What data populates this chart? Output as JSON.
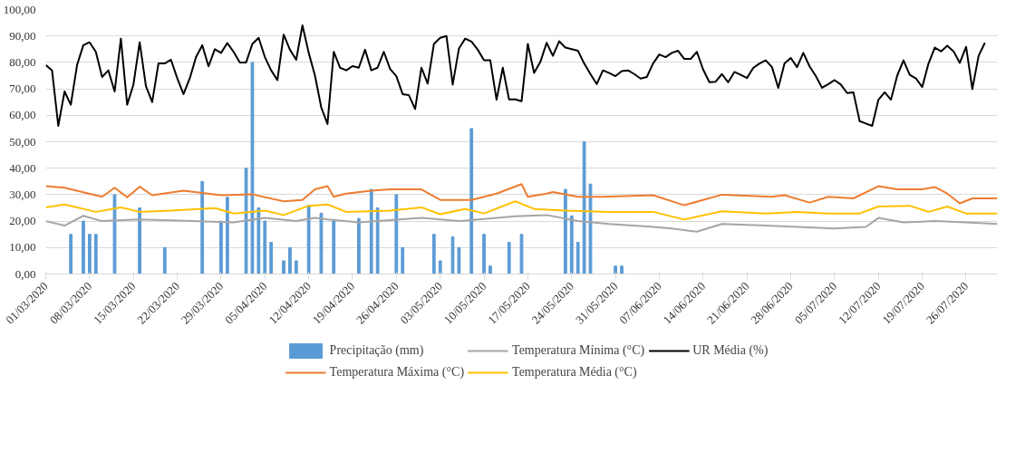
{
  "chart_data": {
    "type": "line",
    "ylim": [
      0,
      100
    ],
    "yticks": [
      {
        "value": 0,
        "label": "0,00"
      },
      {
        "value": 10,
        "label": "10,00"
      },
      {
        "value": 20,
        "label": "20,00"
      },
      {
        "value": 30,
        "label": "30,00"
      },
      {
        "value": 40,
        "label": "40,00"
      },
      {
        "value": 50,
        "label": "50,00"
      },
      {
        "value": 60,
        "label": "60,00"
      },
      {
        "value": 70,
        "label": "70,00"
      },
      {
        "value": 80,
        "label": "80,00"
      },
      {
        "value": 90,
        "label": "90,00"
      },
      {
        "value": 100,
        "label": "100,00"
      }
    ],
    "xlim": [
      "2020-03-01",
      "2020-07-31"
    ],
    "xticks": [
      {
        "value": "2020-03-01",
        "label": "01/03/2020"
      },
      {
        "value": "2020-03-08",
        "label": "08/03/2020"
      },
      {
        "value": "2020-03-15",
        "label": "15/03/2020"
      },
      {
        "value": "2020-03-22",
        "label": "22/03/2020"
      },
      {
        "value": "2020-03-29",
        "label": "29/03/2020"
      },
      {
        "value": "2020-04-05",
        "label": "05/04/2020"
      },
      {
        "value": "2020-04-12",
        "label": "12/04/2020"
      },
      {
        "value": "2020-04-19",
        "label": "19/04/2020"
      },
      {
        "value": "2020-04-26",
        "label": "26/04/2020"
      },
      {
        "value": "2020-05-03",
        "label": "03/05/2020"
      },
      {
        "value": "2020-05-10",
        "label": "10/05/2020"
      },
      {
        "value": "2020-05-17",
        "label": "17/05/2020"
      },
      {
        "value": "2020-05-24",
        "label": "24/05/2020"
      },
      {
        "value": "2020-05-31",
        "label": "31/05/2020"
      },
      {
        "value": "2020-06-07",
        "label": "07/06/2020"
      },
      {
        "value": "2020-06-14",
        "label": "14/06/2020"
      },
      {
        "value": "2020-06-21",
        "label": "21/06/2020"
      },
      {
        "value": "2020-06-28",
        "label": "28/06/2020"
      },
      {
        "value": "2020-07-05",
        "label": "05/07/2020"
      },
      {
        "value": "2020-07-12",
        "label": "12/07/2020"
      },
      {
        "value": "2020-07-19",
        "label": "19/07/2020"
      },
      {
        "value": "2020-07-26",
        "label": "26/07/2020"
      }
    ],
    "grid": "y",
    "legend": "bottom",
    "series": [
      {
        "name": "Precipitação (mm)",
        "type": "bar",
        "color": "#5b9bd5",
        "x": [
          "2020-03-05",
          "2020-03-07",
          "2020-03-08",
          "2020-03-09",
          "2020-03-12",
          "2020-03-16",
          "2020-03-20",
          "2020-03-26",
          "2020-03-29",
          "2020-03-30",
          "2020-04-02",
          "2020-04-03",
          "2020-04-04",
          "2020-04-05",
          "2020-04-06",
          "2020-04-08",
          "2020-04-09",
          "2020-04-10",
          "2020-04-12",
          "2020-04-14",
          "2020-04-16",
          "2020-04-20",
          "2020-04-22",
          "2020-04-23",
          "2020-04-26",
          "2020-04-27",
          "2020-05-02",
          "2020-05-03",
          "2020-05-05",
          "2020-05-06",
          "2020-05-08",
          "2020-05-10",
          "2020-05-11",
          "2020-05-14",
          "2020-05-16",
          "2020-05-23",
          "2020-05-24",
          "2020-05-25",
          "2020-05-26",
          "2020-05-27",
          "2020-05-31",
          "2020-06-01"
        ],
        "values": [
          15,
          20,
          15,
          15,
          30,
          25,
          10,
          35,
          20,
          29,
          40,
          80,
          25,
          20,
          12,
          5,
          10,
          5,
          26,
          23,
          20,
          21,
          32,
          25,
          30,
          10,
          15,
          5,
          14,
          10,
          55,
          15,
          3,
          12,
          15,
          32,
          22,
          12,
          50,
          34,
          3,
          3
        ]
      },
      {
        "name": "Temperatura Máxima (°C)",
        "color": "#ed7d31",
        "x": [
          "2020-03-01",
          "2020-03-04",
          "2020-03-10",
          "2020-03-12",
          "2020-03-14",
          "2020-03-16",
          "2020-03-18",
          "2020-03-23",
          "2020-03-29",
          "2020-04-03",
          "2020-04-08",
          "2020-04-11",
          "2020-04-13",
          "2020-04-15",
          "2020-04-16",
          "2020-04-18",
          "2020-04-22",
          "2020-04-25",
          "2020-04-30",
          "2020-05-03",
          "2020-05-08",
          "2020-05-12",
          "2020-05-16",
          "2020-05-17",
          "2020-05-20",
          "2020-05-21",
          "2020-05-25",
          "2020-05-29",
          "2020-06-06",
          "2020-06-11",
          "2020-06-14",
          "2020-06-17",
          "2020-06-25",
          "2020-06-27",
          "2020-07-01",
          "2020-07-04",
          "2020-07-08",
          "2020-07-12",
          "2020-07-15",
          "2020-07-19",
          "2020-07-21",
          "2020-07-23",
          "2020-07-25",
          "2020-07-27",
          "2020-07-31"
        ],
        "values": [
          33.2,
          32.6,
          29.2,
          32.6,
          29,
          33,
          29.8,
          31.5,
          29.8,
          30.1,
          27.5,
          28,
          32,
          33.2,
          29.2,
          30.4,
          31.5,
          32,
          32,
          28,
          28,
          30.4,
          34,
          29.2,
          30.4,
          31,
          29.2,
          29.2,
          29.8,
          26,
          28,
          30,
          29.2,
          29.8,
          27,
          29.2,
          28.6,
          33.2,
          32,
          32,
          32.9,
          30.4,
          26.7,
          28.6,
          28.6
        ]
      },
      {
        "name": "Temperatura Mínima (°C)",
        "color": "#a5a5a5",
        "x": [
          "2020-03-01",
          "2020-03-04",
          "2020-03-07",
          "2020-03-10",
          "2020-03-16",
          "2020-03-21",
          "2020-03-31",
          "2020-04-05",
          "2020-04-10",
          "2020-04-13",
          "2020-04-15",
          "2020-04-20",
          "2020-04-30",
          "2020-05-06",
          "2020-05-15",
          "2020-05-20",
          "2020-05-25",
          "2020-05-30",
          "2020-06-06",
          "2020-06-09",
          "2020-06-13",
          "2020-06-17",
          "2020-06-24",
          "2020-06-29",
          "2020-07-05",
          "2020-07-10",
          "2020-07-12",
          "2020-07-16",
          "2020-07-21",
          "2020-07-26",
          "2020-07-31"
        ],
        "values": [
          20,
          18.3,
          22,
          20,
          20.6,
          20.3,
          19.5,
          21.2,
          20,
          21.2,
          20.6,
          19.5,
          21.2,
          20,
          21.8,
          22.3,
          20,
          18.9,
          17.8,
          17.2,
          16,
          18.9,
          18.3,
          17.8,
          17.2,
          17.8,
          21.2,
          19.5,
          20,
          19.5,
          18.9
        ]
      },
      {
        "name": "Temperatura Média (°C)",
        "color": "#ffc000",
        "x": [
          "2020-03-01",
          "2020-03-04",
          "2020-03-09",
          "2020-03-13",
          "2020-03-16",
          "2020-03-21",
          "2020-03-28",
          "2020-03-31",
          "2020-04-05",
          "2020-04-08",
          "2020-04-12",
          "2020-04-15",
          "2020-04-18",
          "2020-04-25",
          "2020-04-30",
          "2020-05-03",
          "2020-05-07",
          "2020-05-10",
          "2020-05-15",
          "2020-05-18",
          "2020-05-23",
          "2020-05-30",
          "2020-06-06",
          "2020-06-11",
          "2020-06-17",
          "2020-06-24",
          "2020-06-29",
          "2020-07-04",
          "2020-07-09",
          "2020-07-12",
          "2020-07-17",
          "2020-07-20",
          "2020-07-23",
          "2020-07-26",
          "2020-07-31"
        ],
        "values": [
          25.2,
          26.3,
          23.5,
          25.2,
          23.5,
          24,
          24.9,
          22.9,
          24,
          22.3,
          25.8,
          26.3,
          23.5,
          24,
          25.2,
          22.6,
          24.6,
          22.9,
          27.5,
          24.6,
          24,
          23.5,
          23.5,
          20.6,
          23.7,
          22.9,
          23.5,
          22.9,
          22.9,
          25.5,
          25.8,
          23.5,
          25.5,
          22.9,
          22.9
        ]
      },
      {
        "name": "UR Média (%)",
        "color": "#000000",
        "x": [
          "2020-03-01",
          "2020-03-02",
          "2020-03-03",
          "2020-03-04",
          "2020-03-05",
          "2020-03-06",
          "2020-03-07",
          "2020-03-08",
          "2020-03-09",
          "2020-03-10",
          "2020-03-11",
          "2020-03-12",
          "2020-03-13",
          "2020-03-14",
          "2020-03-15",
          "2020-03-16",
          "2020-03-17",
          "2020-03-18",
          "2020-03-19",
          "2020-03-20",
          "2020-03-21",
          "2020-03-22",
          "2020-03-23",
          "2020-03-24",
          "2020-03-25",
          "2020-03-26",
          "2020-03-27",
          "2020-03-28",
          "2020-03-29",
          "2020-03-30",
          "2020-03-31",
          "2020-04-01",
          "2020-04-02",
          "2020-04-03",
          "2020-04-04",
          "2020-04-05",
          "2020-04-06",
          "2020-04-07",
          "2020-04-08",
          "2020-04-09",
          "2020-04-10",
          "2020-04-11",
          "2020-04-12",
          "2020-04-13",
          "2020-04-14",
          "2020-04-15",
          "2020-04-16",
          "2020-04-17",
          "2020-04-18",
          "2020-04-19",
          "2020-04-20",
          "2020-04-21",
          "2020-04-22",
          "2020-04-23",
          "2020-04-24",
          "2020-04-25",
          "2020-04-26",
          "2020-04-27",
          "2020-04-28",
          "2020-04-29",
          "2020-04-30",
          "2020-05-01",
          "2020-05-02",
          "2020-05-03",
          "2020-05-04",
          "2020-05-05",
          "2020-05-06",
          "2020-05-07",
          "2020-05-08",
          "2020-05-09",
          "2020-05-10",
          "2020-05-11",
          "2020-05-12",
          "2020-05-13",
          "2020-05-14",
          "2020-05-15",
          "2020-05-16",
          "2020-05-17",
          "2020-05-18",
          "2020-05-19",
          "2020-05-20",
          "2020-05-21",
          "2020-05-22",
          "2020-05-23",
          "2020-05-24",
          "2020-05-25",
          "2020-05-26",
          "2020-05-27",
          "2020-05-28",
          "2020-05-29",
          "2020-05-30",
          "2020-05-31",
          "2020-06-01",
          "2020-06-02",
          "2020-06-03",
          "2020-06-04",
          "2020-06-05",
          "2020-06-06",
          "2020-06-07",
          "2020-06-08",
          "2020-06-09",
          "2020-06-10",
          "2020-06-11",
          "2020-06-12",
          "2020-06-13",
          "2020-06-14",
          "2020-06-15",
          "2020-06-16",
          "2020-06-17",
          "2020-06-18",
          "2020-06-19",
          "2020-06-20",
          "2020-06-21",
          "2020-06-22",
          "2020-06-23",
          "2020-06-24",
          "2020-06-25",
          "2020-06-26",
          "2020-06-27",
          "2020-06-28",
          "2020-06-29",
          "2020-06-30",
          "2020-07-01",
          "2020-07-02",
          "2020-07-03",
          "2020-07-04",
          "2020-07-05",
          "2020-07-06",
          "2020-07-07",
          "2020-07-08",
          "2020-07-09",
          "2020-07-10",
          "2020-07-11",
          "2020-07-12",
          "2020-07-13",
          "2020-07-14",
          "2020-07-15",
          "2020-07-16",
          "2020-07-17",
          "2020-07-18",
          "2020-07-19",
          "2020-07-20",
          "2020-07-21",
          "2020-07-22",
          "2020-07-23",
          "2020-07-24",
          "2020-07-25",
          "2020-07-26",
          "2020-07-27",
          "2020-07-28",
          "2020-07-29"
        ],
        "values": [
          79,
          77,
          56,
          69,
          64,
          79,
          86.5,
          87.6,
          84,
          74.5,
          77,
          69,
          89,
          64,
          71.6,
          87.6,
          71,
          65,
          79.6,
          79.6,
          81,
          74,
          68,
          74,
          82,
          86.5,
          78.5,
          85,
          83.6,
          87.3,
          84,
          80,
          80,
          87,
          89.3,
          82,
          77,
          73.3,
          90.5,
          84.8,
          81,
          94,
          83.6,
          75,
          63,
          56.7,
          84,
          78,
          77,
          78.6,
          78,
          84.8,
          77,
          78,
          84,
          77.5,
          74.8,
          68,
          67.6,
          62.4,
          78,
          72,
          87,
          89.3,
          90,
          71.6,
          85.3,
          89,
          87.9,
          84.8,
          80.8,
          80.8,
          65.9,
          78,
          66,
          66,
          65.3,
          87,
          76,
          80.2,
          87.4,
          82.5,
          88,
          85.6,
          85,
          84.4,
          79.6,
          75.6,
          71.8,
          77,
          76,
          74.8,
          76.7,
          77,
          75.6,
          73.9,
          74.5,
          79.6,
          83,
          82,
          83.6,
          84.4,
          81.3,
          81.3,
          84,
          77.3,
          72.5,
          72.7,
          75.6,
          72.5,
          76.4,
          75.3,
          74.1,
          77.9,
          79.6,
          80.8,
          78.2,
          70.4,
          79.6,
          81.7,
          78.2,
          83.6,
          78.5,
          74.8,
          70.4,
          71.8,
          73.3,
          71.6,
          68.4,
          68.7,
          57.8,
          56.9,
          56,
          65.9,
          68.7,
          65.9,
          75,
          80.8,
          75.3,
          73.9,
          70.7,
          79.6,
          85.6,
          84.2,
          86.3,
          84.2,
          79.8,
          85.9,
          69.9,
          82.5,
          87.4
        ]
      }
    ]
  }
}
